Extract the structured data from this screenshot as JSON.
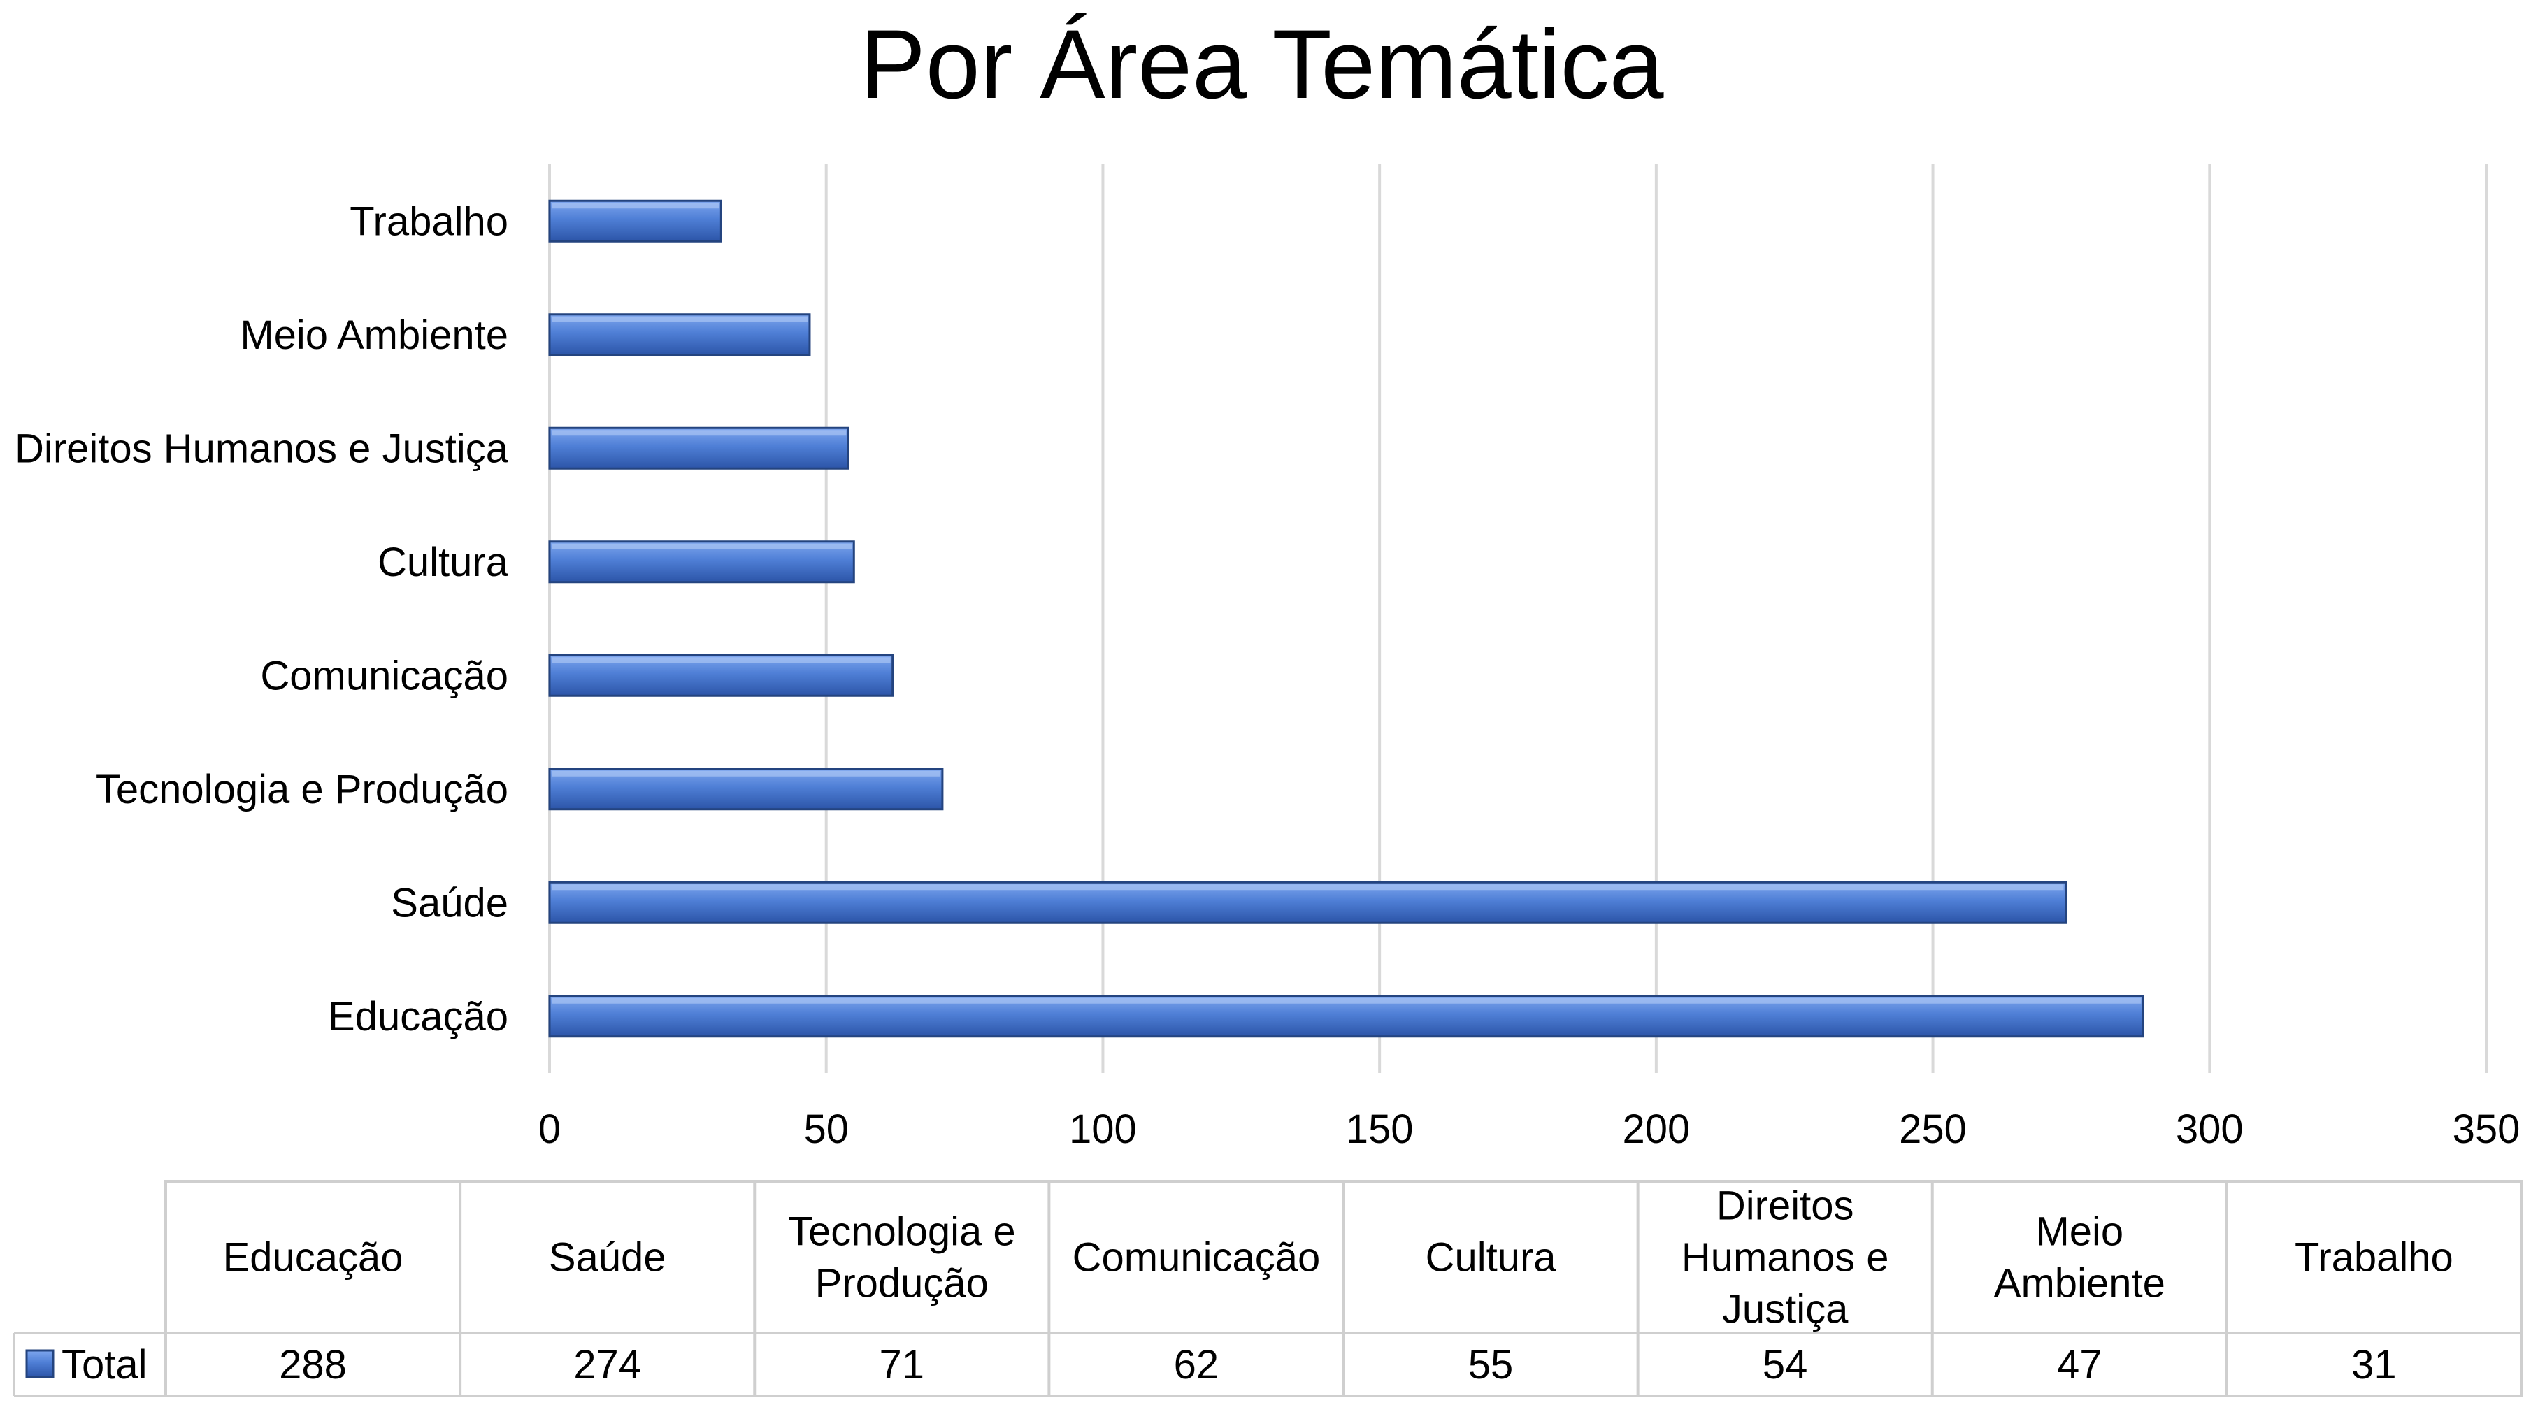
{
  "chart_data": {
    "type": "bar",
    "orientation": "horizontal",
    "title": "Por Área Temática",
    "categories": [
      "Educação",
      "Saúde",
      "Tecnologia e Produção",
      "Comunicação",
      "Cultura",
      "Direitos Humanos e Justiça",
      "Meio Ambiente",
      "Trabalho"
    ],
    "series": [
      {
        "name": "Total",
        "values": [
          288,
          274,
          71,
          62,
          55,
          54,
          47,
          31
        ]
      }
    ],
    "xlim": [
      0,
      350
    ],
    "x_ticks": [
      "0",
      "50",
      "100",
      "150",
      "200",
      "250",
      "300",
      "350"
    ],
    "grid": true,
    "legend": "data-table",
    "bar_color": "#4f7fd6",
    "data_table": {
      "headers": [
        [
          "Educação"
        ],
        [
          "Saúde"
        ],
        [
          "Tecnologia e",
          "Produção"
        ],
        [
          "Comunicação"
        ],
        [
          "Cultura"
        ],
        [
          "Direitos",
          "Humanos e",
          "Justiça"
        ],
        [
          "Meio",
          "Ambiente"
        ],
        [
          "Trabalho"
        ]
      ],
      "row_label": "Total",
      "values": [
        "288",
        "274",
        "71",
        "62",
        "55",
        "54",
        "47",
        "31"
      ]
    }
  }
}
